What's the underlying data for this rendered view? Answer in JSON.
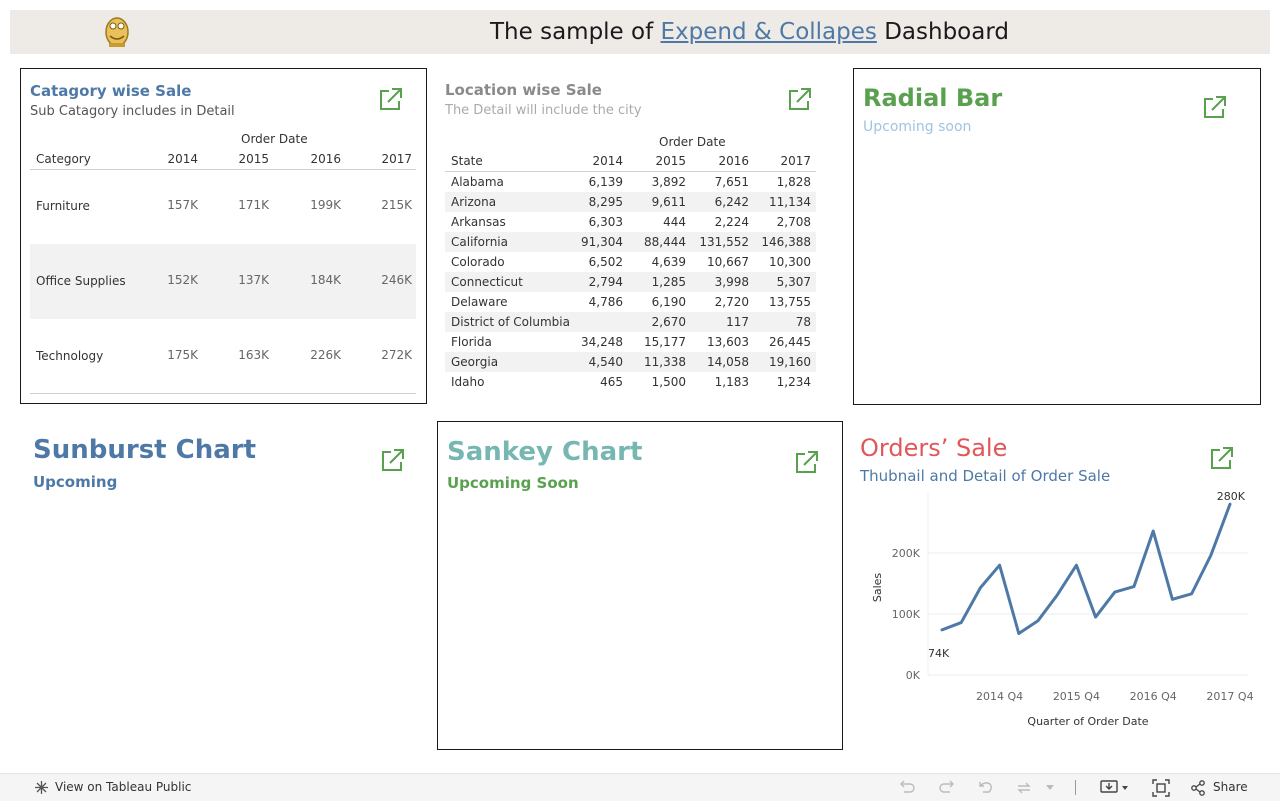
{
  "header": {
    "title_prefix": "The sample of ",
    "title_link": "Expend & Collapes",
    "title_suffix": " Dashboard",
    "logo_icon": "tableau-mascot-logo-icon"
  },
  "category_panel": {
    "title": "Catagory wise Sale",
    "subtitle": "Sub Catagory includes in Detail",
    "column_group": "Order Date",
    "columns": [
      "Category",
      "2014",
      "2015",
      "2016",
      "2017"
    ],
    "rows": [
      {
        "label": "Furniture",
        "values": [
          "157K",
          "171K",
          "199K",
          "215K"
        ]
      },
      {
        "label": "Office Supplies",
        "values": [
          "152K",
          "137K",
          "184K",
          "246K"
        ]
      },
      {
        "label": "Technology",
        "values": [
          "175K",
          "163K",
          "226K",
          "272K"
        ]
      }
    ]
  },
  "location_panel": {
    "title": "Location wise Sale",
    "subtitle": "The Detail will include the city",
    "column_group": "Order Date",
    "columns": [
      "State",
      "2014",
      "2015",
      "2016",
      "2017"
    ],
    "rows": [
      {
        "label": "Alabama",
        "values": [
          "6,139",
          "3,892",
          "7,651",
          "1,828"
        ]
      },
      {
        "label": "Arizona",
        "values": [
          "8,295",
          "9,611",
          "6,242",
          "11,134"
        ]
      },
      {
        "label": "Arkansas",
        "values": [
          "6,303",
          "444",
          "2,224",
          "2,708"
        ]
      },
      {
        "label": "California",
        "values": [
          "91,304",
          "88,444",
          "131,552",
          "146,388"
        ]
      },
      {
        "label": "Colorado",
        "values": [
          "6,502",
          "4,639",
          "10,667",
          "10,300"
        ]
      },
      {
        "label": "Connecticut",
        "values": [
          "2,794",
          "1,285",
          "3,998",
          "5,307"
        ]
      },
      {
        "label": "Delaware",
        "values": [
          "4,786",
          "6,190",
          "2,720",
          "13,755"
        ]
      },
      {
        "label": "District of Columbia",
        "values": [
          "",
          "2,670",
          "117",
          "78"
        ]
      },
      {
        "label": "Florida",
        "values": [
          "34,248",
          "15,177",
          "13,603",
          "26,445"
        ]
      },
      {
        "label": "Georgia",
        "values": [
          "4,540",
          "11,338",
          "14,058",
          "19,160"
        ]
      },
      {
        "label": "Idaho",
        "values": [
          "465",
          "1,500",
          "1,183",
          "1,234"
        ]
      }
    ]
  },
  "radial_panel": {
    "title": "Radial Bar",
    "subtitle": "Upcoming soon"
  },
  "sunburst_panel": {
    "title": "Sunburst Chart",
    "subtitle": "Upcoming"
  },
  "sankey_panel": {
    "title": "Sankey Chart",
    "subtitle": "Upcoming Soon"
  },
  "orders_panel": {
    "title": "Orders’ Sale",
    "subtitle": "Thubnail and Detail of Order Sale"
  },
  "chart_data": {
    "type": "line",
    "xlabel": "Quarter of Order Date",
    "ylabel": "Sales",
    "x_ticks": [
      "2014 Q4",
      "2015 Q4",
      "2016 Q4",
      "2017 Q4"
    ],
    "y_ticks": [
      "0K",
      "100K",
      "200K"
    ],
    "ylim": [
      0,
      300000
    ],
    "x": [
      "2014 Q1",
      "2014 Q2",
      "2014 Q3",
      "2014 Q4",
      "2015 Q1",
      "2015 Q2",
      "2015 Q3",
      "2015 Q4",
      "2016 Q1",
      "2016 Q2",
      "2016 Q3",
      "2016 Q4",
      "2017 Q1",
      "2017 Q2",
      "2017 Q3",
      "2017 Q4"
    ],
    "values": [
      74000,
      86000,
      143000,
      180000,
      68000,
      89000,
      131000,
      180000,
      95000,
      136000,
      145000,
      236000,
      124000,
      133000,
      196000,
      280000
    ],
    "min_label": "74K",
    "max_label": "280K",
    "line_color": "#4e79a7"
  },
  "colors": {
    "blue_title": "#4e79a7",
    "gray_title": "#8a8a8a",
    "green_title": "#59a14f",
    "teal_title": "#76b7b2",
    "red_title": "#e15759",
    "expand_icon": "#59a14f"
  },
  "footer": {
    "view_label": "View on Tableau Public",
    "share_label": "Share",
    "icons": [
      "tableau-logo-icon",
      "undo-icon",
      "redo-icon",
      "revert-icon",
      "refresh-icon",
      "dropdown-icon",
      "download-icon",
      "fullscreen-icon",
      "share-icon"
    ]
  }
}
